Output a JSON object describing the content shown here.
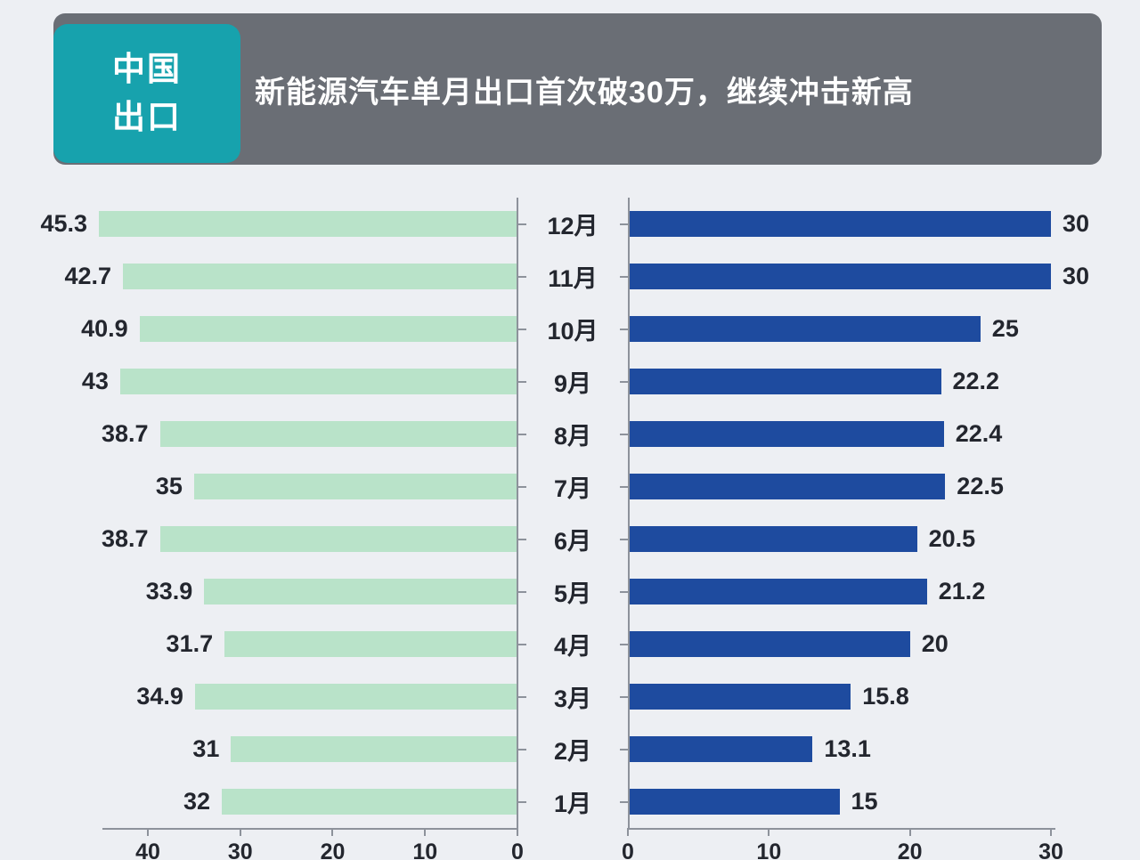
{
  "header": {
    "badge": {
      "line1": "中国",
      "line2": "出口"
    },
    "title": "新能源汽车单月出口首次破30万，继续冲击新高"
  },
  "colors": {
    "background": "#edeff3",
    "header_bar": "#6a6e75",
    "badge": "#17a2ad",
    "left_bar": "#b9e3c9",
    "right_bar": "#1e4b9f",
    "axis": "#8d929b",
    "text": "#23262e"
  },
  "chart_data": {
    "type": "bar",
    "layout": "diverging horizontal bars, shared month categories in the middle, left axis reversed",
    "grid": "off",
    "categories": [
      "12月",
      "11月",
      "10月",
      "9月",
      "8月",
      "7月",
      "6月",
      "5月",
      "4月",
      "3月",
      "2月",
      "1月"
    ],
    "series": [
      {
        "name": "left",
        "color": "#b9e3c9",
        "direction": "right-to-left",
        "values": [
          45.3,
          42.7,
          40.9,
          43,
          38.7,
          35,
          38.7,
          33.9,
          31.7,
          34.9,
          31,
          32
        ],
        "value_labels": [
          "45.3",
          "42.7",
          "40.9",
          "43",
          "38.7",
          "35",
          "38.7",
          "33.9",
          "31.7",
          "34.9",
          "31",
          "32"
        ],
        "axis_ticks": [
          40,
          30,
          20,
          10,
          0
        ],
        "axis_max": 45.3
      },
      {
        "name": "right",
        "color": "#1e4b9f",
        "direction": "left-to-right",
        "values": [
          30,
          30,
          25,
          22.2,
          22.4,
          22.5,
          20.5,
          21.2,
          20,
          15.8,
          13.1,
          15
        ],
        "value_labels": [
          "30",
          "30",
          "25",
          "22.2",
          "22.4",
          "22.5",
          "20.5",
          "21.2",
          "20",
          "15.8",
          "13.1",
          "15"
        ],
        "axis_ticks": [
          0,
          10,
          20,
          30
        ],
        "axis_max": 30
      }
    ]
  }
}
